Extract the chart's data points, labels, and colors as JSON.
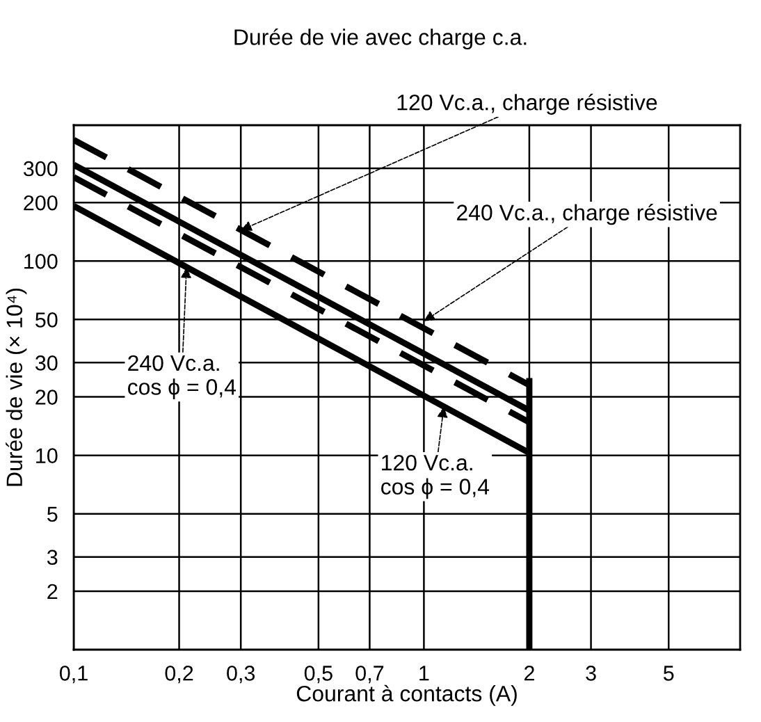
{
  "chart_data": {
    "type": "line",
    "title": "Durée de vie avec charge c.a.",
    "xlabel": "Courant à contacts (A)",
    "ylabel": "Durée de vie (× 10⁴)",
    "log": "xy",
    "grid": true,
    "marker": "none",
    "xlim": [
      0.1,
      8
    ],
    "ylim": [
      1,
      500
    ],
    "xticks": [
      {
        "value": 0.1,
        "label": "0,1"
      },
      {
        "value": 0.2,
        "label": "0,2"
      },
      {
        "value": 0.3,
        "label": "0,3"
      },
      {
        "value": 0.5,
        "label": "0,5"
      },
      {
        "value": 0.7,
        "label": "0,7"
      },
      {
        "value": 1,
        "label": "1"
      },
      {
        "value": 2,
        "label": "2"
      },
      {
        "value": 3,
        "label": "3"
      },
      {
        "value": 5,
        "label": "5"
      }
    ],
    "yticks": [
      2,
      3,
      5,
      10,
      20,
      30,
      50,
      100,
      200,
      300
    ],
    "x": [
      0.1,
      2
    ],
    "series": [
      {
        "values": [
          420,
          23
        ],
        "color": "#000000",
        "line_style": "dashed"
      },
      {
        "values": [
          313,
          17
        ],
        "color": "#000000",
        "line_style": "solid"
      },
      {
        "values": [
          270,
          14.8
        ],
        "color": "#000000",
        "line_style": "dashed"
      },
      {
        "values": [
          192,
          10.3
        ],
        "color": "#000000",
        "line_style": "solid"
      },
      {
        "x": [
          2,
          2
        ],
        "values": [
          1,
          25
        ],
        "color": "#000000",
        "line_style": "solid"
      }
    ],
    "annotations": [
      {
        "text": "120 Vc.a., charge résistive",
        "x": 0.3,
        "y": 144
      },
      {
        "text": "240 Vc.a., charge résistive",
        "x": 1.0,
        "y": 49
      },
      {
        "text": "240 Vc.a.\ncos ϕ = 0,4",
        "x": 0.21,
        "y": 93
      },
      {
        "text": "120 Vc.a.\ncos ϕ = 0,4",
        "x": 1.14,
        "y": 17.8
      }
    ]
  }
}
